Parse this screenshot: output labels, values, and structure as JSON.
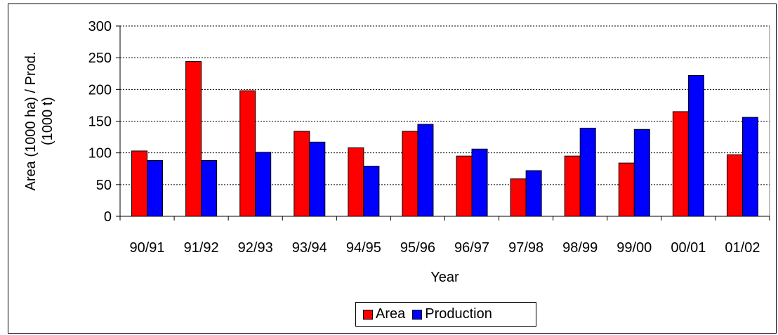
{
  "chart_data": {
    "type": "bar",
    "xlabel": "Year",
    "ylabel": "Area (1000 ha) / Prod.\n(1000 t)",
    "ylim": [
      0,
      300
    ],
    "yticks": [
      0,
      50,
      100,
      150,
      200,
      250,
      300
    ],
    "grid": true,
    "legend_position": "bottom",
    "categories": [
      "90/91",
      "91/92",
      "92/93",
      "93/94",
      "94/95",
      "95/96",
      "96/97",
      "97/98",
      "98/99",
      "99/00",
      "00/01",
      "01/02"
    ],
    "series": [
      {
        "name": "Area",
        "color": "#ff0000",
        "values": [
          103,
          244,
          198,
          134,
          108,
          134,
          95,
          59,
          95,
          84,
          165,
          97
        ]
      },
      {
        "name": "Production",
        "color": "#0000ff",
        "values": [
          88,
          88,
          101,
          117,
          79,
          145,
          106,
          72,
          139,
          137,
          222,
          156
        ]
      }
    ]
  }
}
